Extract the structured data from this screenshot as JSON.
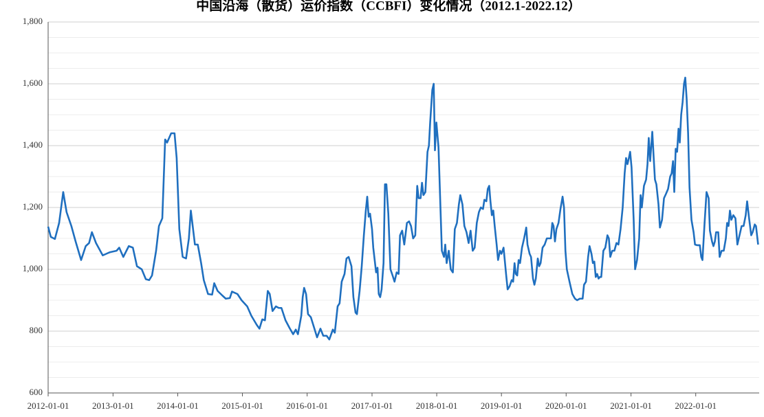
{
  "chart_data": {
    "type": "line",
    "title": "中国沿海（散货）运价指数（CCBFI）变化情况（2012.1-2022.12）",
    "color": "#1f6fbf",
    "xlim": [
      "2012-01-01",
      "2022-12-25"
    ],
    "xticks": [
      "2012-01-01",
      "2013-01-01",
      "2014-01-01",
      "2015-01-01",
      "2016-01-01",
      "2017-01-01",
      "2018-01-01",
      "2019-01-01",
      "2020-01-01",
      "2021-01-01",
      "2022-01-01"
    ],
    "ylim": [
      600,
      1800
    ],
    "yticks": [
      600,
      800,
      {
        "value": 1000,
        "label": "1,000"
      },
      {
        "value": 1200,
        "label": "1,200"
      },
      {
        "value": 1400,
        "label": "1,400"
      },
      {
        "value": 1600,
        "label": "1,600"
      },
      {
        "value": 1800,
        "label": "1,800"
      }
    ],
    "minor_yticks": [
      650,
      700,
      750,
      850,
      900,
      950,
      1050,
      1100,
      1150,
      1250,
      1300,
      1350,
      1450,
      1500,
      1550,
      1650,
      1700,
      1750
    ],
    "grid": true,
    "x": [
      "2012-01-01",
      "2012-01-16",
      "2012-02-08",
      "2012-03-03",
      "2012-03-26",
      "2012-04-14",
      "2012-05-11",
      "2012-06-04",
      "2012-07-05",
      "2012-07-31",
      "2012-08-19",
      "2012-09-04",
      "2012-09-27",
      "2012-11-04",
      "2012-12-13",
      "2013-01-21",
      "2013-02-05",
      "2013-02-28",
      "2013-03-31",
      "2013-04-23",
      "2013-05-16",
      "2013-06-12",
      "2013-07-05",
      "2013-07-24",
      "2013-08-09",
      "2013-09-01",
      "2013-09-17",
      "2013-10-06",
      "2013-10-22",
      "2013-11-02",
      "2013-11-25",
      "2013-12-14",
      "2013-12-26",
      "2014-01-10",
      "2014-01-29",
      "2014-02-17",
      "2014-03-05",
      "2014-03-16",
      "2014-04-08",
      "2014-04-24",
      "2014-05-13",
      "2014-05-28",
      "2014-06-21",
      "2014-07-14",
      "2014-07-26",
      "2014-08-14",
      "2014-09-10",
      "2014-09-29",
      "2014-10-22",
      "2014-11-03",
      "2014-12-04",
      "2014-12-27",
      "2015-01-28",
      "2015-02-20",
      "2015-03-23",
      "2015-04-07",
      "2015-04-23",
      "2015-05-08",
      "2015-05-24",
      "2015-06-04",
      "2015-06-20",
      "2015-07-09",
      "2015-07-25",
      "2015-08-09",
      "2015-09-01",
      "2015-09-24",
      "2015-10-14",
      "2015-10-29",
      "2015-11-10",
      "2015-11-29",
      "2015-12-07",
      "2015-12-15",
      "2015-12-26",
      "2016-01-06",
      "2016-01-22",
      "2016-02-10",
      "2016-02-26",
      "2016-03-16",
      "2016-04-01",
      "2016-04-20",
      "2016-05-05",
      "2016-05-25",
      "2016-06-05",
      "2016-06-21",
      "2016-07-02",
      "2016-07-14",
      "2016-07-30",
      "2016-08-10",
      "2016-08-22",
      "2016-09-07",
      "2016-09-18",
      "2016-09-30",
      "2016-10-08",
      "2016-10-23",
      "2016-11-04",
      "2016-11-16",
      "2016-11-27",
      "2016-12-05",
      "2016-12-13",
      "2016-12-21",
      "2017-01-01",
      "2017-01-08",
      "2017-01-16",
      "2017-01-24",
      "2017-02-01",
      "2017-02-08",
      "2017-02-16",
      "2017-02-24",
      "2017-03-07",
      "2017-03-15",
      "2017-03-23",
      "2017-04-03",
      "2017-04-15",
      "2017-04-27",
      "2017-05-08",
      "2017-05-20",
      "2017-05-31",
      "2017-06-08",
      "2017-06-20",
      "2017-07-02",
      "2017-07-17",
      "2017-07-29",
      "2017-08-09",
      "2017-08-21",
      "2017-09-02",
      "2017-09-13",
      "2017-09-21",
      "2017-10-02",
      "2017-10-10",
      "2017-10-18",
      "2017-10-29",
      "2017-11-10",
      "2017-11-18",
      "2017-11-25",
      "2017-12-07",
      "2017-12-15",
      "2017-12-22",
      "2017-12-30",
      "2018-01-11",
      "2018-01-22",
      "2018-01-30",
      "2018-02-11",
      "2018-02-18",
      "2018-02-26",
      "2018-03-10",
      "2018-03-21",
      "2018-04-02",
      "2018-04-13",
      "2018-04-25",
      "2018-05-06",
      "2018-05-14",
      "2018-05-26",
      "2018-06-06",
      "2018-06-18",
      "2018-06-30",
      "2018-07-11",
      "2018-07-23",
      "2018-08-03",
      "2018-08-15",
      "2018-08-27",
      "2018-09-07",
      "2018-09-19",
      "2018-09-27",
      "2018-10-08",
      "2018-10-16",
      "2018-10-24",
      "2018-10-31",
      "2018-11-08",
      "2018-11-16",
      "2018-11-24",
      "2018-12-05",
      "2018-12-13",
      "2018-12-24",
      "2019-01-01",
      "2019-01-13",
      "2019-01-28",
      "2019-02-05",
      "2019-02-16",
      "2019-02-28",
      "2019-03-08",
      "2019-03-16",
      "2019-03-23",
      "2019-03-31",
      "2019-04-08",
      "2019-04-16",
      "2019-04-27",
      "2019-05-09",
      "2019-05-21",
      "2019-05-28",
      "2019-06-09",
      "2019-06-17",
      "2019-06-28",
      "2019-07-06",
      "2019-07-14",
      "2019-07-25",
      "2019-08-02",
      "2019-08-10",
      "2019-08-21",
      "2019-09-02",
      "2019-09-14",
      "2019-09-25",
      "2019-10-07",
      "2019-10-15",
      "2019-10-22",
      "2019-10-30",
      "2019-11-07",
      "2019-11-19",
      "2019-11-30",
      "2019-12-12",
      "2019-12-20",
      "2019-12-28",
      "2020-01-05",
      "2020-01-20",
      "2020-02-05",
      "2020-02-20",
      "2020-03-03",
      "2020-03-18",
      "2020-04-03",
      "2020-04-11",
      "2020-04-22",
      "2020-05-04",
      "2020-05-12",
      "2020-05-23",
      "2020-05-31",
      "2020-06-08",
      "2020-06-16",
      "2020-06-24",
      "2020-07-02",
      "2020-07-09",
      "2020-07-17",
      "2020-07-29",
      "2020-08-09",
      "2020-08-21",
      "2020-08-29",
      "2020-09-06",
      "2020-09-17",
      "2020-09-29",
      "2020-10-11",
      "2020-10-22",
      "2020-11-03",
      "2020-11-15",
      "2020-11-26",
      "2020-12-04",
      "2020-12-12",
      "2020-12-20",
      "2020-12-27",
      "2021-01-04",
      "2021-01-16",
      "2021-01-24",
      "2021-02-04",
      "2021-02-16",
      "2021-02-24",
      "2021-03-03",
      "2021-03-15",
      "2021-03-27",
      "2021-04-04",
      "2021-04-11",
      "2021-04-19",
      "2021-05-01",
      "2021-05-09",
      "2021-05-16",
      "2021-05-24",
      "2021-06-05",
      "2021-06-13",
      "2021-06-25",
      "2021-07-06",
      "2021-07-18",
      "2021-07-29",
      "2021-08-10",
      "2021-08-18",
      "2021-08-26",
      "2021-09-02",
      "2021-09-10",
      "2021-09-18",
      "2021-09-26",
      "2021-10-03",
      "2021-10-11",
      "2021-10-19",
      "2021-10-27",
      "2021-11-03",
      "2021-11-11",
      "2021-11-19",
      "2021-11-27",
      "2021-12-08",
      "2021-12-20",
      "2021-12-28",
      "2022-01-08",
      "2022-01-24",
      "2022-02-01",
      "2022-02-08",
      "2022-02-20",
      "2022-03-03",
      "2022-03-15",
      "2022-03-22",
      "2022-04-03",
      "2022-04-11",
      "2022-04-19",
      "2022-04-26",
      "2022-05-08",
      "2022-05-16",
      "2022-05-27",
      "2022-06-08",
      "2022-06-20",
      "2022-06-27",
      "2022-07-05",
      "2022-07-13",
      "2022-07-21",
      "2022-08-01",
      "2022-08-13",
      "2022-08-24",
      "2022-09-05",
      "2022-09-17",
      "2022-09-28",
      "2022-10-10",
      "2022-10-18",
      "2022-10-29",
      "2022-11-10",
      "2022-11-18",
      "2022-11-30",
      "2022-12-07",
      "2022-12-19"
    ],
    "values": [
      1138,
      1105,
      1098,
      1150,
      1250,
      1185,
      1140,
      1090,
      1030,
      1075,
      1085,
      1120,
      1085,
      1045,
      1055,
      1060,
      1070,
      1040,
      1075,
      1070,
      1010,
      1000,
      968,
      965,
      980,
      1060,
      1140,
      1165,
      1420,
      1410,
      1440,
      1440,
      1360,
      1130,
      1040,
      1035,
      1100,
      1190,
      1080,
      1080,
      1020,
      965,
      920,
      918,
      955,
      930,
      915,
      905,
      907,
      928,
      920,
      900,
      880,
      850,
      820,
      808,
      838,
      835,
      930,
      920,
      865,
      880,
      875,
      875,
      835,
      810,
      790,
      805,
      790,
      850,
      910,
      940,
      920,
      855,
      845,
      810,
      780,
      808,
      785,
      785,
      773,
      805,
      795,
      880,
      890,
      960,
      985,
      1035,
      1040,
      1010,
      910,
      860,
      855,
      930,
      1010,
      1110,
      1190,
      1235,
      1170,
      1180,
      1130,
      1070,
      1030,
      990,
      1005,
      920,
      910,
      935,
      1020,
      1275,
      1275,
      1180,
      1000,
      980,
      960,
      990,
      985,
      1110,
      1125,
      1080,
      1150,
      1155,
      1140,
      1100,
      1110,
      1270,
      1230,
      1230,
      1280,
      1240,
      1250,
      1380,
      1400,
      1475,
      1580,
      1600,
      1385,
      1475,
      1395,
      1200,
      1060,
      1040,
      1080,
      1020,
      1060,
      1000,
      990,
      1130,
      1150,
      1210,
      1240,
      1210,
      1140,
      1120,
      1085,
      1125,
      1060,
      1070,
      1150,
      1185,
      1200,
      1195,
      1225,
      1220,
      1260,
      1270,
      1220,
      1175,
      1190,
      1140,
      1080,
      1030,
      1060,
      1050,
      1070,
      980,
      935,
      945,
      965,
      960,
      1020,
      985,
      980,
      1030,
      1020,
      1070,
      1100,
      1135,
      1080,
      1050,
      1040,
      970,
      950,
      970,
      1035,
      1010,
      1020,
      1070,
      1080,
      1100,
      1100,
      1100,
      1150,
      1140,
      1090,
      1130,
      1150,
      1195,
      1235,
      1200,
      1060,
      1000,
      960,
      920,
      905,
      900,
      905,
      905,
      950,
      960,
      1040,
      1075,
      1050,
      1020,
      1025,
      975,
      985,
      970,
      975,
      975,
      1060,
      1070,
      1110,
      1100,
      1040,
      1060,
      1060,
      1085,
      1080,
      1130,
      1200,
      1310,
      1360,
      1340,
      1360,
      1380,
      1330,
      1160,
      1000,
      1030,
      1100,
      1240,
      1200,
      1270,
      1290,
      1340,
      1425,
      1350,
      1445,
      1360,
      1290,
      1275,
      1210,
      1135,
      1160,
      1230,
      1245,
      1260,
      1300,
      1310,
      1350,
      1250,
      1390,
      1380,
      1455,
      1410,
      1500,
      1540,
      1600,
      1620,
      1550,
      1440,
      1265,
      1160,
      1120,
      1080,
      1078,
      1078,
      1040,
      1030,
      1150,
      1250,
      1230,
      1125,
      1090,
      1075,
      1090,
      1120,
      1120,
      1040,
      1060,
      1060,
      1100,
      1150,
      1140,
      1190,
      1160,
      1175,
      1165,
      1080,
      1110,
      1140,
      1140,
      1175,
      1220,
      1165,
      1110,
      1120,
      1145,
      1140,
      1080
    ]
  }
}
